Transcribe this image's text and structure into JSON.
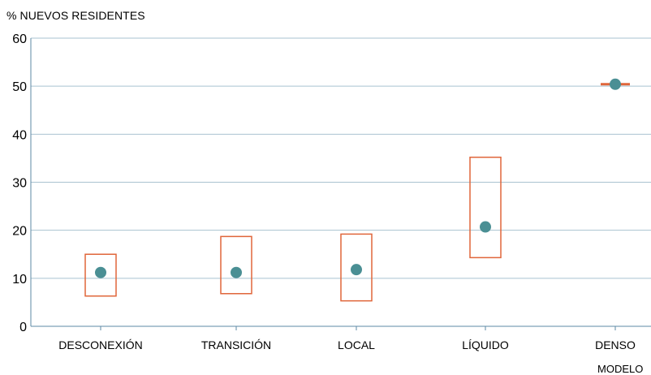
{
  "chart_data": {
    "type": "range-box",
    "ylabel": "% NUEVOS RESIDENTES",
    "xlabel": "MODELO",
    "ylim": [
      0,
      60
    ],
    "yticks": [
      0,
      10,
      20,
      30,
      40,
      50,
      60
    ],
    "grid": true,
    "categories": [
      "DESCONEXIÓN",
      "TRANSICIÓN",
      "LOCAL",
      "LÍQUIDO",
      "DENSO"
    ],
    "low": [
      6.3,
      6.8,
      5.3,
      14.3,
      50.2
    ],
    "high": [
      15.0,
      18.7,
      19.2,
      35.2,
      50.6
    ],
    "point": [
      11.2,
      11.2,
      11.8,
      20.7,
      50.4
    ],
    "colors": {
      "box": "#e0663a",
      "point": "#4a8f94",
      "grid": "#a9c3d0",
      "axis": "#5e8aa5"
    }
  }
}
